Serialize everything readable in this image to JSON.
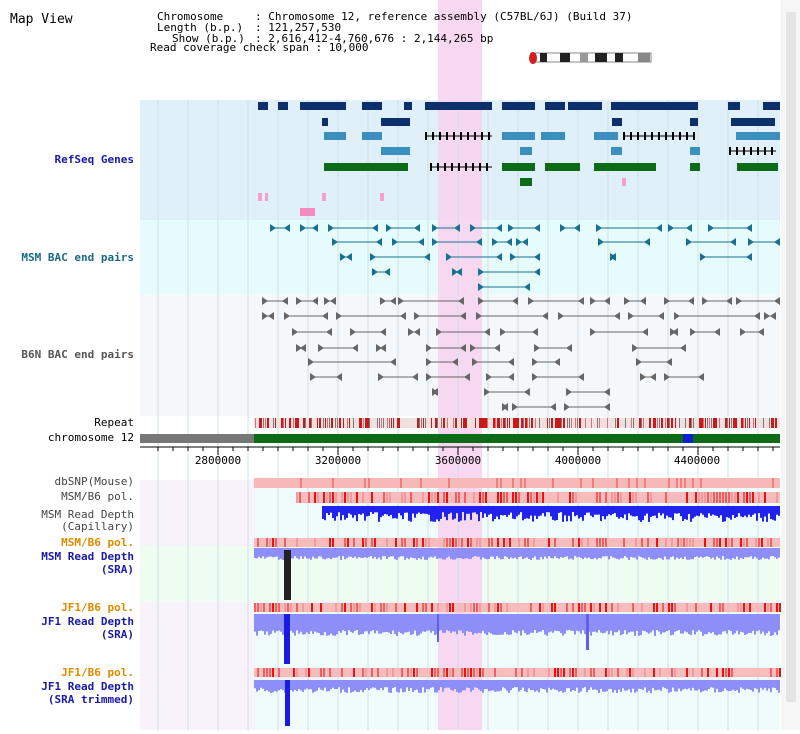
{
  "page": {
    "title": "Map View"
  },
  "info": {
    "chromosome_key": "Chromosome",
    "chromosome_val": ": Chromosome 12, reference assembly (C57BL/6J) (Build 37)",
    "length_key": "Length (b.p.)",
    "length_val": ": 121,257,530",
    "show_key": "Show (b.p.)",
    "show_val": ": 2,616,412-4,760,676 : 2,144,265 bp",
    "coverage_text": "Read coverage check span : 10,000"
  },
  "tracks": {
    "refseq": "RefSeq Genes",
    "msm_bac": "MSM BAC end pairs",
    "b6n_bac": "B6N BAC end pairs",
    "repeat": "Repeat",
    "chromosome": "chromosome 12",
    "dbsnp": "dbSNP(Mouse)",
    "msm_b6_pol_1": "MSM/B6 pol.",
    "msm_read_depth_cap_1": "MSM Read Depth",
    "msm_read_depth_cap_2": "(Capillary)",
    "msm_b6_pol_2": "MSM/B6 pol.",
    "msm_read_depth_sra_1": "MSM Read Depth",
    "msm_read_depth_sra_2": "(SRA)",
    "jf1_b6_pol_1": "JF1/B6 pol.",
    "jf1_read_depth_sra_1": "JF1 Read Depth",
    "jf1_read_depth_sra_2": "(SRA)",
    "jf1_b6_pol_2": "JF1/B6 pol.",
    "jf1_read_depth_trim_1": "JF1 Read Depth",
    "jf1_read_depth_trim_2": "(SRA trimmed)"
  },
  "axis": {
    "ticks": [
      "2800000",
      "3200000",
      "3600000",
      "4000000",
      "4400000"
    ]
  },
  "colors": {
    "refseq_bg": "#dff0fa",
    "msm_bac_bg": "#e6fbfb",
    "b6n_bac_bg": "#f4f8fa",
    "highlight": "#f7d4f0",
    "gene_dark": "#0d2f6b",
    "gene_mid": "#3a8fbf",
    "gene_green": "#0b6b16",
    "bac_teal": "#1a7090",
    "bac_gray": "#666666",
    "depth_blue": "#2222ee",
    "depth_light": "#8e8ef8",
    "pol_red": "#ee2222",
    "label_blue": "#1a1aa8",
    "label_teal": "#1a6a8a",
    "label_orange": "#e08a00",
    "label_gray": "#555555"
  }
}
